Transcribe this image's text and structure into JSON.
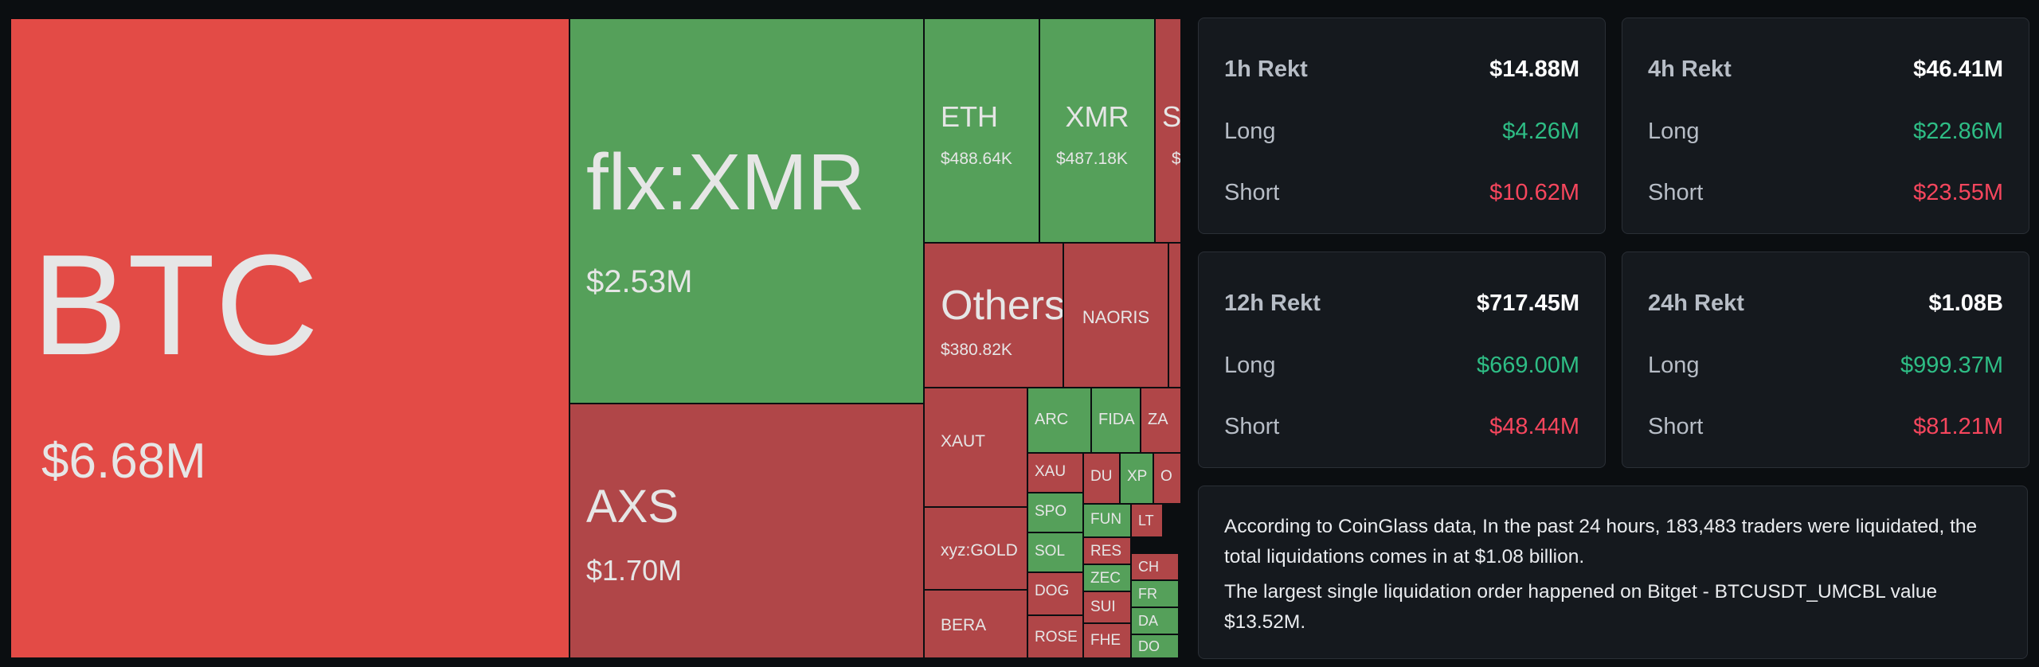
{
  "chart_data": {
    "type": "treemap",
    "colors": {
      "long": "#55a05a",
      "short_strong": "#e34b46",
      "short": "#b04648"
    },
    "tiles": [
      {
        "symbol": "BTC",
        "value": "$6.68M",
        "side": "short_strong"
      },
      {
        "symbol": "flx:XMR",
        "value": "$2.53M",
        "side": "long"
      },
      {
        "symbol": "AXS",
        "value": "$1.70M",
        "side": "short"
      },
      {
        "symbol": "ETH",
        "value": "$488.64K",
        "side": "long"
      },
      {
        "symbol": "XMR",
        "value": "$487.18K",
        "side": "long"
      },
      {
        "symbol": "S",
        "value": "$",
        "side": "short"
      },
      {
        "symbol": "Others",
        "value": "$380.82K",
        "side": "short"
      },
      {
        "symbol": "NAORIS",
        "value": "",
        "side": "short"
      },
      {
        "symbol": "",
        "value": "",
        "side": "short"
      },
      {
        "symbol": "XAUT",
        "value": "",
        "side": "short"
      },
      {
        "symbol": "xyz:GOLD",
        "value": "",
        "side": "short"
      },
      {
        "symbol": "BERA",
        "value": "",
        "side": "short"
      },
      {
        "symbol": "ARC",
        "value": "",
        "side": "long"
      },
      {
        "symbol": "FIDA",
        "value": "",
        "side": "long"
      },
      {
        "symbol": "ZA",
        "value": "",
        "side": "short"
      },
      {
        "symbol": "XAU",
        "value": "",
        "side": "short"
      },
      {
        "symbol": "DU",
        "value": "",
        "side": "short"
      },
      {
        "symbol": "XP",
        "value": "",
        "side": "long"
      },
      {
        "symbol": "O",
        "value": "",
        "side": "short"
      },
      {
        "symbol": "SPO",
        "value": "",
        "side": "long"
      },
      {
        "symbol": "SOL",
        "value": "",
        "side": "long"
      },
      {
        "symbol": "DOG",
        "value": "",
        "side": "short"
      },
      {
        "symbol": "ROSE",
        "value": "",
        "side": "short"
      },
      {
        "symbol": "FUN",
        "value": "",
        "side": "long"
      },
      {
        "symbol": "RES",
        "value": "",
        "side": "short"
      },
      {
        "symbol": "ZEC",
        "value": "",
        "side": "long"
      },
      {
        "symbol": "SUI",
        "value": "",
        "side": "short"
      },
      {
        "symbol": "FHE",
        "value": "",
        "side": "short"
      },
      {
        "symbol": "LT",
        "value": "",
        "side": "short"
      },
      {
        "symbol": "CH",
        "value": "",
        "side": "short"
      },
      {
        "symbol": "FR",
        "value": "",
        "side": "long"
      },
      {
        "symbol": "DA",
        "value": "",
        "side": "long"
      },
      {
        "symbol": "DO",
        "value": "",
        "side": "long"
      }
    ]
  },
  "stats": [
    {
      "title": "1h Rekt",
      "total": "$14.88M",
      "long_label": "Long",
      "long": "$4.26M",
      "short_label": "Short",
      "short": "$10.62M"
    },
    {
      "title": "4h Rekt",
      "total": "$46.41M",
      "long_label": "Long",
      "long": "$22.86M",
      "short_label": "Short",
      "short": "$23.55M"
    },
    {
      "title": "12h Rekt",
      "total": "$717.45M",
      "long_label": "Long",
      "long": "$669.00M",
      "short_label": "Short",
      "short": "$48.44M"
    },
    {
      "title": "24h Rekt",
      "total": "$1.08B",
      "long_label": "Long",
      "long": "$999.37M",
      "short_label": "Short",
      "short": "$81.21M"
    }
  ],
  "summary": {
    "line1": "According to CoinGlass data, In the past 24 hours, 183,483 traders were liquidated, the total liquidations comes in at $1.08 billion.",
    "line2": "The largest single liquidation order happened on Bitget - BTCUSDT_UMCBL value $13.52M."
  }
}
